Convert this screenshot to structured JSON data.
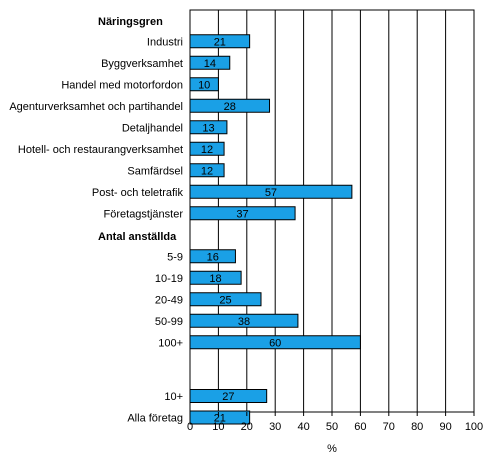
{
  "chart_data": {
    "type": "bar",
    "orientation": "horizontal",
    "xlabel": "%",
    "xlim": [
      0,
      100
    ],
    "xticks": [
      0,
      10,
      20,
      30,
      40,
      50,
      60,
      70,
      80,
      90,
      100
    ],
    "grid": "vertical",
    "bar_color": "#1aa0e6",
    "bar_edge_color": "#000000",
    "groups": [
      {
        "heading": "Näringsgren",
        "categories": [
          "Industri",
          "Byggverksamhet",
          "Handel med motorfordon",
          "Agenturverksamhet och partihandel",
          "Detaljhandel",
          "Hotell- och restaurangverksamhet",
          "Samfärdsel",
          "Post- och teletrafik",
          "Företagstjänster"
        ],
        "values": [
          21,
          14,
          10,
          28,
          13,
          12,
          12,
          57,
          37
        ]
      },
      {
        "heading": "Antal anställda",
        "categories": [
          "5-9",
          "10-19",
          "20-49",
          "50-99",
          "100+"
        ],
        "values": [
          16,
          18,
          25,
          38,
          60
        ]
      },
      {
        "heading": "",
        "categories": [
          "10+",
          "Alla företag"
        ],
        "values": [
          27,
          21
        ]
      }
    ]
  }
}
